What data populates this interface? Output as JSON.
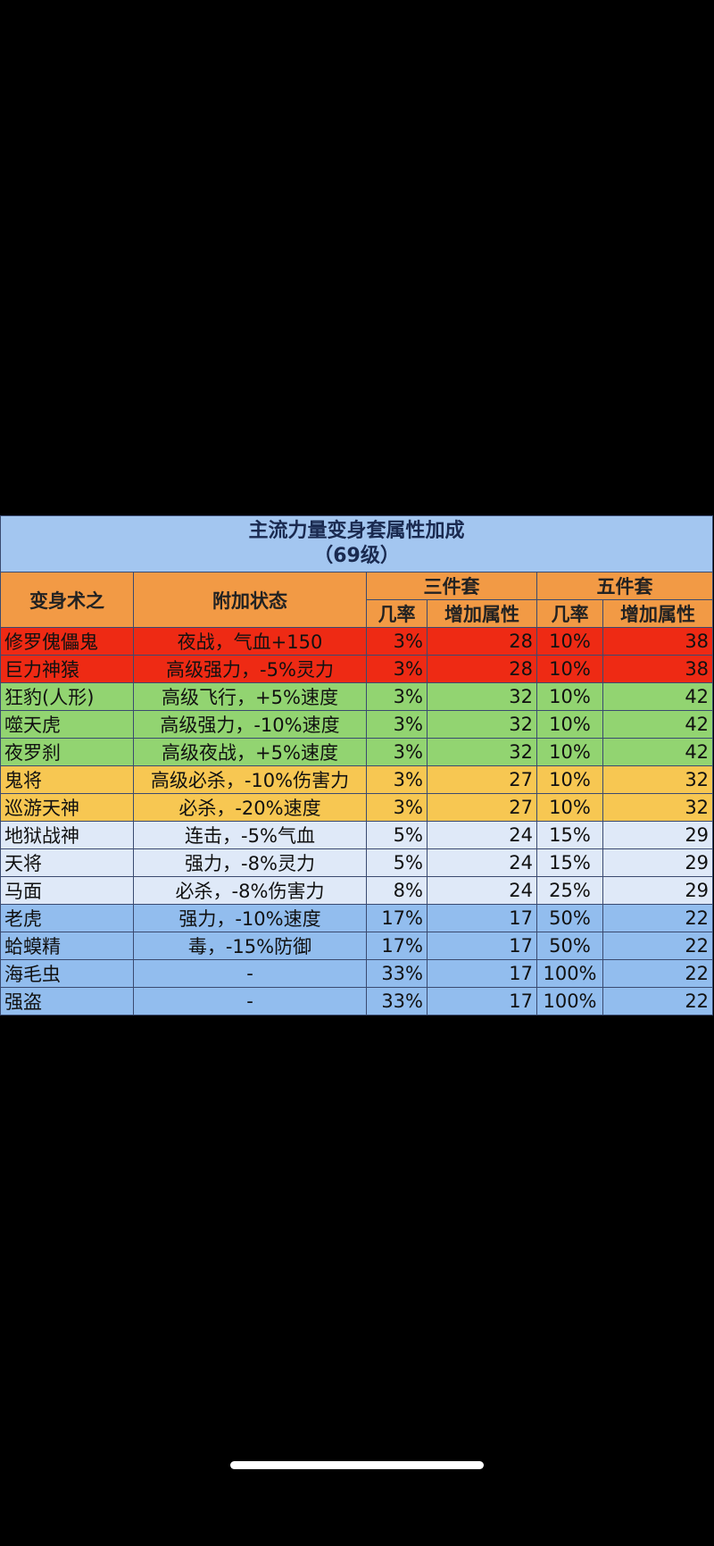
{
  "table": {
    "title": "主流力量变身套属性加成",
    "subtitle": "（69级）",
    "headers": {
      "name": "变身术之",
      "status": "附加状态",
      "set3": "三件套",
      "set5": "五件套",
      "rate": "几率",
      "attr": "增加属性"
    },
    "colors": {
      "red": "#ee2a14",
      "green": "#92d471",
      "yellow": "#f7c752",
      "light": "#dfe9f8",
      "blue": "#92bdee",
      "header": "#f29a45",
      "title": "#a3c6f0"
    },
    "rows": [
      {
        "tier": "red",
        "name": "修罗傀儡鬼",
        "status": "夜战，气血+150",
        "r3": "3%",
        "a3": "28",
        "r5": "10%",
        "a5": "38"
      },
      {
        "tier": "red",
        "name": "巨力神猿",
        "status": "高级强力，-5%灵力",
        "r3": "3%",
        "a3": "28",
        "r5": "10%",
        "a5": "38"
      },
      {
        "tier": "green",
        "name": "狂豹(人形)",
        "status": "高级飞行，+5%速度",
        "r3": "3%",
        "a3": "32",
        "r5": "10%",
        "a5": "42"
      },
      {
        "tier": "green",
        "name": "噬天虎",
        "status": "高级强力，-10%速度",
        "r3": "3%",
        "a3": "32",
        "r5": "10%",
        "a5": "42"
      },
      {
        "tier": "green",
        "name": "夜罗刹",
        "status": "高级夜战，+5%速度",
        "r3": "3%",
        "a3": "32",
        "r5": "10%",
        "a5": "42"
      },
      {
        "tier": "yellow",
        "name": "鬼将",
        "status": "高级必杀，-10%伤害力",
        "r3": "3%",
        "a3": "27",
        "r5": "10%",
        "a5": "32"
      },
      {
        "tier": "yellow",
        "name": "巡游天神",
        "status": "必杀，-20%速度",
        "r3": "3%",
        "a3": "27",
        "r5": "10%",
        "a5": "32"
      },
      {
        "tier": "light",
        "name": "地狱战神",
        "status": "连击，-5%气血",
        "r3": "5%",
        "a3": "24",
        "r5": "15%",
        "a5": "29"
      },
      {
        "tier": "light",
        "name": "天将",
        "status": "强力，-8%灵力",
        "r3": "5%",
        "a3": "24",
        "r5": "15%",
        "a5": "29"
      },
      {
        "tier": "light",
        "name": "马面",
        "status": "必杀，-8%伤害力",
        "r3": "8%",
        "a3": "24",
        "r5": "25%",
        "a5": "29"
      },
      {
        "tier": "blue",
        "name": "老虎",
        "status": "强力，-10%速度",
        "r3": "17%",
        "a3": "17",
        "r5": "50%",
        "a5": "22"
      },
      {
        "tier": "blue",
        "name": "蛤蟆精",
        "status": "毒，-15%防御",
        "r3": "17%",
        "a3": "17",
        "r5": "50%",
        "a5": "22"
      },
      {
        "tier": "blue",
        "name": "海毛虫",
        "status": "-",
        "r3": "33%",
        "a3": "17",
        "r5": "100%",
        "a5": "22"
      },
      {
        "tier": "blue",
        "name": "强盗",
        "status": "-",
        "r3": "33%",
        "a3": "17",
        "r5": "100%",
        "a5": "22"
      }
    ]
  }
}
